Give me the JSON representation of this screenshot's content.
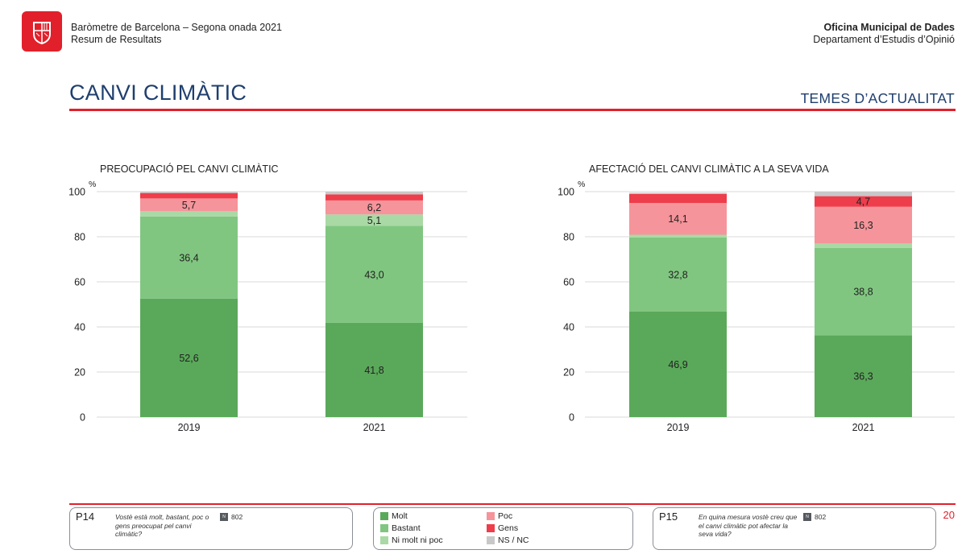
{
  "header": {
    "left_line1": "Baròmetre de Barcelona – Segona onada 2021",
    "left_line2": "Resum de Resultats",
    "right_line1": "Oficina Municipal de Dades",
    "right_line2": "Departament d’Estudis d’Opinió"
  },
  "page": {
    "title": "CANVI CLIMÀTIC",
    "section": "TEMES D’ACTUALITAT",
    "page_number": "20"
  },
  "colors": {
    "molt": "#5aa95a",
    "bastant": "#80c680",
    "ni_molt_ni_poc": "#a9d9a4",
    "poc": "#f5949a",
    "gens": "#ee3d4b",
    "ns_nc": "#c8c8c8",
    "brand_red": "#e1202b",
    "title_blue": "#1f3f6e"
  },
  "legend": [
    {
      "label": "Molt",
      "color_key": "molt"
    },
    {
      "label": "Bastant",
      "color_key": "bastant"
    },
    {
      "label": "Ni molt ni poc",
      "color_key": "ni_molt_ni_poc"
    },
    {
      "label": "Poc",
      "color_key": "poc"
    },
    {
      "label": "Gens",
      "color_key": "gens"
    },
    {
      "label": "NS / NC",
      "color_key": "ns_nc"
    }
  ],
  "questions": {
    "p14": {
      "code": "P14",
      "text": "Vostè està molt, bastant, poc o gens preocupat pel canvi climàtic?",
      "n": "802"
    },
    "p15": {
      "code": "P15",
      "text": "En quina mesura vostè creu que el canvi climàtic pot afectar la seva vida?",
      "n": "802"
    }
  },
  "chart_data": [
    {
      "type": "bar",
      "stacked": true,
      "title": "PREOCUPACIÓ PEL CANVI CLIMÀTIC",
      "ylabel": "%",
      "ylim": [
        0,
        100
      ],
      "yticks": [
        0,
        20,
        40,
        60,
        80,
        100
      ],
      "grid": true,
      "categories": [
        "2019",
        "2021"
      ],
      "series": [
        {
          "name": "Molt",
          "color_key": "molt",
          "values": [
            52.6,
            41.8
          ],
          "labels": [
            "52,6",
            "41,8"
          ]
        },
        {
          "name": "Bastant",
          "color_key": "bastant",
          "values": [
            36.4,
            43.0
          ],
          "labels": [
            "36,4",
            "43,0"
          ]
        },
        {
          "name": "Ni molt ni poc",
          "color_key": "ni_molt_ni_poc",
          "values": [
            2.3,
            5.1
          ],
          "labels": [
            "",
            "5,1"
          ]
        },
        {
          "name": "Poc",
          "color_key": "poc",
          "values": [
            5.7,
            6.2
          ],
          "labels": [
            "5,7",
            "6,2"
          ]
        },
        {
          "name": "Gens",
          "color_key": "gens",
          "values": [
            2.4,
            2.7
          ],
          "labels": [
            "",
            ""
          ]
        },
        {
          "name": "NS / NC",
          "color_key": "ns_nc",
          "values": [
            0.6,
            1.2
          ],
          "labels": [
            "",
            ""
          ]
        }
      ]
    },
    {
      "type": "bar",
      "stacked": true,
      "title": "AFECTACIÓ DEL CANVI CLIMÀTIC A LA SEVA VIDA",
      "ylabel": "%",
      "ylim": [
        0,
        100
      ],
      "yticks": [
        0,
        20,
        40,
        60,
        80,
        100
      ],
      "grid": true,
      "categories": [
        "2019",
        "2021"
      ],
      "series": [
        {
          "name": "Molt",
          "color_key": "molt",
          "values": [
            46.9,
            36.3
          ],
          "labels": [
            "46,9",
            "36,3"
          ]
        },
        {
          "name": "Bastant",
          "color_key": "bastant",
          "values": [
            32.8,
            38.8
          ],
          "labels": [
            "32,8",
            "38,8"
          ]
        },
        {
          "name": "Ni molt ni poc",
          "color_key": "ni_molt_ni_poc",
          "values": [
            1.2,
            1.9
          ],
          "labels": [
            "",
            ""
          ]
        },
        {
          "name": "Poc",
          "color_key": "poc",
          "values": [
            14.1,
            16.3
          ],
          "labels": [
            "14,1",
            "16,3"
          ]
        },
        {
          "name": "Gens",
          "color_key": "gens",
          "values": [
            4.0,
            4.7
          ],
          "labels": [
            "",
            "4,7"
          ]
        },
        {
          "name": "NS / NC",
          "color_key": "ns_nc",
          "values": [
            0.5,
            2.0
          ],
          "labels": [
            "",
            ""
          ]
        }
      ]
    }
  ]
}
